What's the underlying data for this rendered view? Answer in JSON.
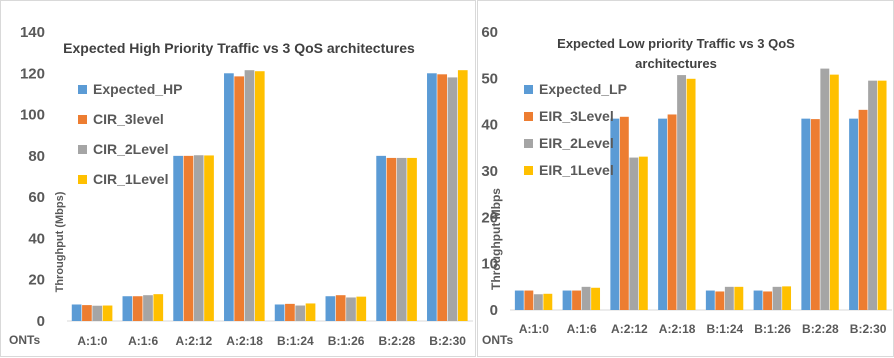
{
  "chart_data": [
    {
      "type": "bar",
      "title": "Expected High Priority Traffic vs 3 QoS architectures",
      "xlabel": "ONTs",
      "ylabel": "Throughput (Mbps)",
      "ylim": [
        0,
        140
      ],
      "yticks": [
        0,
        20,
        40,
        60,
        80,
        100,
        120,
        140
      ],
      "grid": false,
      "legend_position": "left-inside",
      "categories": [
        "A:1:0",
        "A:1:6",
        "A:2:12",
        "A:2:18",
        "B:1:24",
        "B:1:26",
        "B:2:28",
        "B:2:30"
      ],
      "series": [
        {
          "name": "Expected_HP",
          "color": "#5b9bd5",
          "values": [
            8,
            12,
            80,
            120,
            8,
            12,
            80,
            120
          ]
        },
        {
          "name": "CIR_3level",
          "color": "#ed7d31",
          "values": [
            7.7,
            12,
            80,
            118.5,
            8.3,
            12.5,
            79,
            119.5
          ]
        },
        {
          "name": "CIR_2Level",
          "color": "#a5a5a5",
          "values": [
            7.4,
            12.5,
            80.3,
            121.5,
            7.5,
            11.4,
            79,
            118
          ]
        },
        {
          "name": "CIR_1Level",
          "color": "#ffc000",
          "values": [
            7.5,
            13,
            80.2,
            121,
            8.5,
            11.8,
            79,
            121.5
          ]
        }
      ]
    },
    {
      "type": "bar",
      "title": "Expected Low priority Traffic vs 3 QoS architectures",
      "xlabel": "ONTs",
      "ylabel": "Throughput Mbps",
      "ylim": [
        0,
        60
      ],
      "yticks": [
        0,
        10,
        20,
        30,
        40,
        50,
        60
      ],
      "grid": false,
      "legend_position": "left-inside",
      "categories": [
        "A:1:0",
        "A:1:6",
        "A:2:12",
        "A:2:18",
        "B:1:24",
        "B:1:26",
        "B:2:28",
        "B:2:30"
      ],
      "series": [
        {
          "name": "Expected_LP",
          "color": "#5b9bd5",
          "values": [
            4.2,
            4.2,
            41.3,
            41.3,
            4.2,
            4.2,
            41.3,
            41.3
          ]
        },
        {
          "name": "EIR_3Level",
          "color": "#ed7d31",
          "values": [
            4.2,
            4.2,
            41.7,
            42.2,
            4,
            4,
            41.2,
            43.2
          ]
        },
        {
          "name": "EIR_2Level",
          "color": "#a5a5a5",
          "values": [
            3.4,
            5,
            32.9,
            50.7,
            5,
            5,
            52.1,
            49.5
          ]
        },
        {
          "name": "EIR_1Level",
          "color": "#ffc000",
          "values": [
            3.5,
            4.8,
            33.1,
            49.9,
            5,
            5.1,
            50.8,
            49.5
          ]
        }
      ]
    }
  ]
}
